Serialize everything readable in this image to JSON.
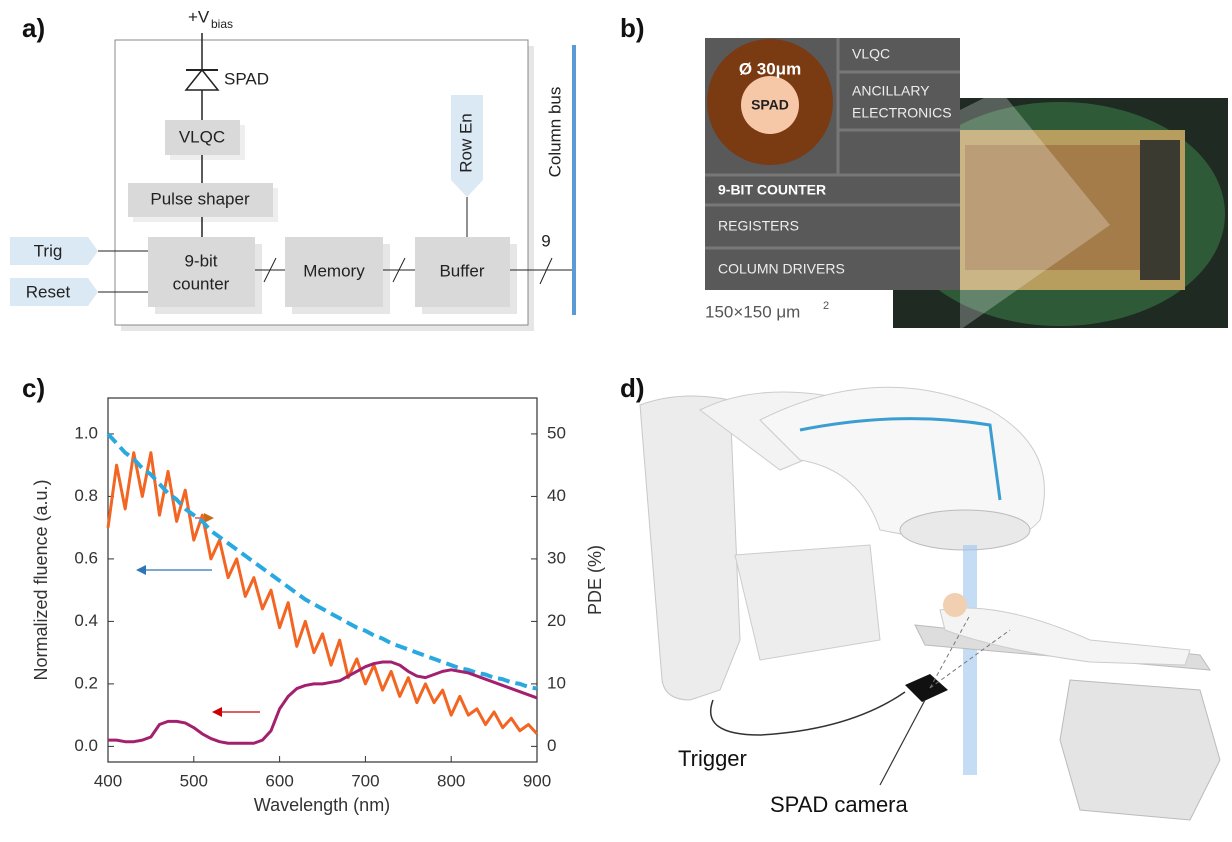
{
  "panel_labels": [
    "a)",
    "b)",
    "c)",
    "d)"
  ],
  "diagram_a": {
    "supply": "+V",
    "supply_sub": "bias",
    "spad": "SPAD",
    "vlqc": "VLQC",
    "pulse_shaper": "Pulse shaper",
    "row_en": "Row En",
    "column_bus": "Column bus",
    "trig": "Trig",
    "reset": "Reset",
    "counter": [
      "9-bit",
      "counter"
    ],
    "memory": "Memory",
    "buffer": "Buffer",
    "bus_width": "9"
  },
  "chip_b": {
    "diameter": "Ø 30μm",
    "spad": "SPAD",
    "vlqc": "VLQC",
    "ancillary": [
      "ANCILLARY",
      "ELECTRONICS"
    ],
    "counter": "9-BIT COUNTER",
    "registers": "REGISTERS",
    "drivers": "COLUMN DRIVERS",
    "size": "150×150 μm",
    "size_sup": "2"
  },
  "chart_data": {
    "type": "line",
    "xlabel": "Wavelength (nm)",
    "ylabel": "Normalized fluence (a.u.)",
    "y2label": "PDE (%)",
    "x": [
      400,
      410,
      420,
      430,
      440,
      450,
      460,
      470,
      480,
      490,
      500,
      510,
      520,
      530,
      540,
      550,
      560,
      570,
      580,
      590,
      600,
      610,
      620,
      630,
      640,
      650,
      660,
      670,
      680,
      690,
      700,
      710,
      720,
      730,
      740,
      750,
      760,
      770,
      780,
      790,
      800,
      810,
      820,
      830,
      840,
      850,
      860,
      870,
      880,
      890,
      900
    ],
    "xlim": [
      400,
      900
    ],
    "xticks": [
      400,
      500,
      600,
      700,
      800,
      900
    ],
    "ylim": [
      -0.05,
      1.115
    ],
    "yticks": [
      {
        "value": 0,
        "label": "0.0"
      },
      0.2,
      0.4,
      0.6,
      0.8,
      {
        "value": 1,
        "label": "1.0"
      }
    ],
    "y2lim": [
      -2.5,
      55.75
    ],
    "y2ticks": [
      0,
      10,
      20,
      30,
      40,
      50
    ],
    "series": [
      {
        "color": "#f26522",
        "axis": "y2",
        "style": "solid",
        "values": [
          35,
          45,
          38,
          47,
          40,
          47,
          37,
          44,
          36,
          41,
          33,
          37,
          30,
          33,
          27,
          30,
          24,
          27,
          22,
          25,
          19,
          23,
          16,
          20,
          15,
          18,
          13,
          17,
          11,
          14,
          10,
          13,
          9,
          12,
          8,
          11,
          7,
          10,
          7,
          9,
          5,
          8,
          5,
          6,
          3.5,
          5.5,
          3,
          4.5,
          2.5,
          3.5,
          2
        ]
      },
      {
        "color": "#29a9e0",
        "axis": "y",
        "style": "dashed",
        "values": [
          1.0,
          0.97,
          0.94,
          0.92,
          0.89,
          0.87,
          0.84,
          0.81,
          0.79,
          0.76,
          0.74,
          0.72,
          0.69,
          0.67,
          0.65,
          0.63,
          0.61,
          0.59,
          0.57,
          0.55,
          0.53,
          0.51,
          0.49,
          0.47,
          0.455,
          0.44,
          0.425,
          0.41,
          0.395,
          0.38,
          0.37,
          0.355,
          0.345,
          0.33,
          0.32,
          0.31,
          0.3,
          0.29,
          0.28,
          0.27,
          0.26,
          0.25,
          0.245,
          0.235,
          0.23,
          0.22,
          0.215,
          0.205,
          0.2,
          0.19,
          0.185
        ]
      },
      {
        "color": "#a3206e",
        "axis": "y",
        "style": "solid",
        "values": [
          0.02,
          0.02,
          0.015,
          0.015,
          0.02,
          0.03,
          0.07,
          0.08,
          0.08,
          0.075,
          0.06,
          0.04,
          0.025,
          0.015,
          0.01,
          0.01,
          0.01,
          0.01,
          0.02,
          0.05,
          0.12,
          0.16,
          0.185,
          0.195,
          0.2,
          0.2,
          0.205,
          0.21,
          0.225,
          0.24,
          0.255,
          0.265,
          0.27,
          0.27,
          0.26,
          0.24,
          0.225,
          0.22,
          0.23,
          0.24,
          0.245,
          0.24,
          0.235,
          0.225,
          0.215,
          0.205,
          0.195,
          0.185,
          0.175,
          0.165,
          0.155
        ]
      }
    ]
  },
  "setup_d": {
    "trigger": "Trigger",
    "camera": "SPAD camera"
  }
}
